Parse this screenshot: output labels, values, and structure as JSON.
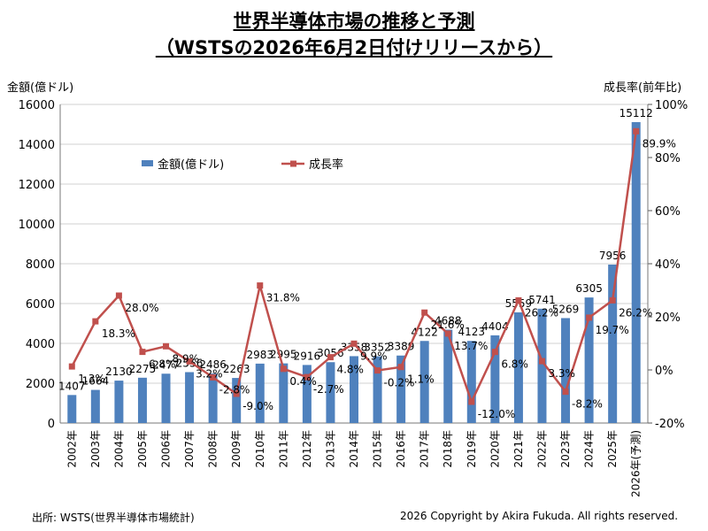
{
  "header": {
    "title": "世界半導体市場の推移と予測",
    "subtitle": "（WSTSの2026年6月2日付けリリースから）",
    "left_axis_unit": "金額(億ドル)",
    "right_axis_unit": "成長率(前年比)"
  },
  "footer": {
    "source": "出所: WSTS(世界半導体市場統計)",
    "copyright": "2026 Copyright by Akira Fukuda. All rights reserved."
  },
  "chart_data": {
    "type": "bar",
    "categories": [
      "2002年",
      "2003年",
      "2004年",
      "2005年",
      "2006年",
      "2007年",
      "2008年",
      "2009年",
      "2010年",
      "2011年",
      "2012年",
      "2013年",
      "2014年",
      "2015年",
      "2016年",
      "2017年",
      "2018年",
      "2019年",
      "2020年",
      "2021年",
      "2022年",
      "2023年",
      "2024年",
      "2025年",
      "2026年(予測)"
    ],
    "series": [
      {
        "name": "金額(億ドル)",
        "type": "bar",
        "axis": "left",
        "color": "#4f81bd",
        "values": [
          1407,
          1664,
          2130,
          2275,
          2477,
          2556,
          2486,
          2263,
          2983,
          2995,
          2916,
          3056,
          3358,
          3352,
          3389,
          4122,
          4688,
          4123,
          4404,
          5559,
          5741,
          5269,
          6305,
          7956,
          15112
        ],
        "labels": [
          "1407",
          "1664",
          "2130",
          "2275",
          "2477",
          "2556",
          "2486",
          "2263",
          "2983",
          "2995",
          "2916",
          "3056",
          "3358",
          "3352",
          "3389",
          "4122",
          "4688",
          "4123",
          "4404",
          "5559",
          "5741",
          "5269",
          "6305",
          "7956",
          "15112"
        ]
      },
      {
        "name": "成長率",
        "type": "line",
        "axis": "right",
        "color": "#c0504d",
        "values": [
          1.3,
          18.3,
          28.0,
          6.8,
          8.9,
          3.2,
          -2.8,
          -9.0,
          31.8,
          0.4,
          -2.7,
          4.8,
          9.9,
          -0.2,
          1.1,
          21.6,
          13.7,
          -12.0,
          6.8,
          26.2,
          3.3,
          -8.2,
          19.7,
          26.2,
          89.9
        ],
        "labels": [
          "1.3%",
          "18.3%",
          "28.0%",
          "6.8%",
          "8.9%",
          "3.2%",
          "-2.8%",
          "-9.0%",
          "31.8%",
          "0.4%",
          "-2.7%",
          "4.8%",
          "9.9%",
          "-0.2%",
          "1.1%",
          "21.6%",
          "13.7%",
          "-12.0%",
          "6.8%",
          "26.2%",
          "3.3%",
          "-8.2%",
          "19.7%",
          "26.2%",
          "89.9%"
        ]
      }
    ],
    "y_left": {
      "range": [
        0,
        16000
      ],
      "ticks": [
        "0",
        "2000",
        "4000",
        "6000",
        "8000",
        "10000",
        "12000",
        "14000",
        "16000"
      ]
    },
    "y_right": {
      "range": [
        -20,
        100
      ],
      "ticks": [
        "-20%",
        "0%",
        "20%",
        "40%",
        "60%",
        "80%",
        "100%"
      ]
    },
    "grid": "horizontal",
    "legend": "top-left"
  }
}
